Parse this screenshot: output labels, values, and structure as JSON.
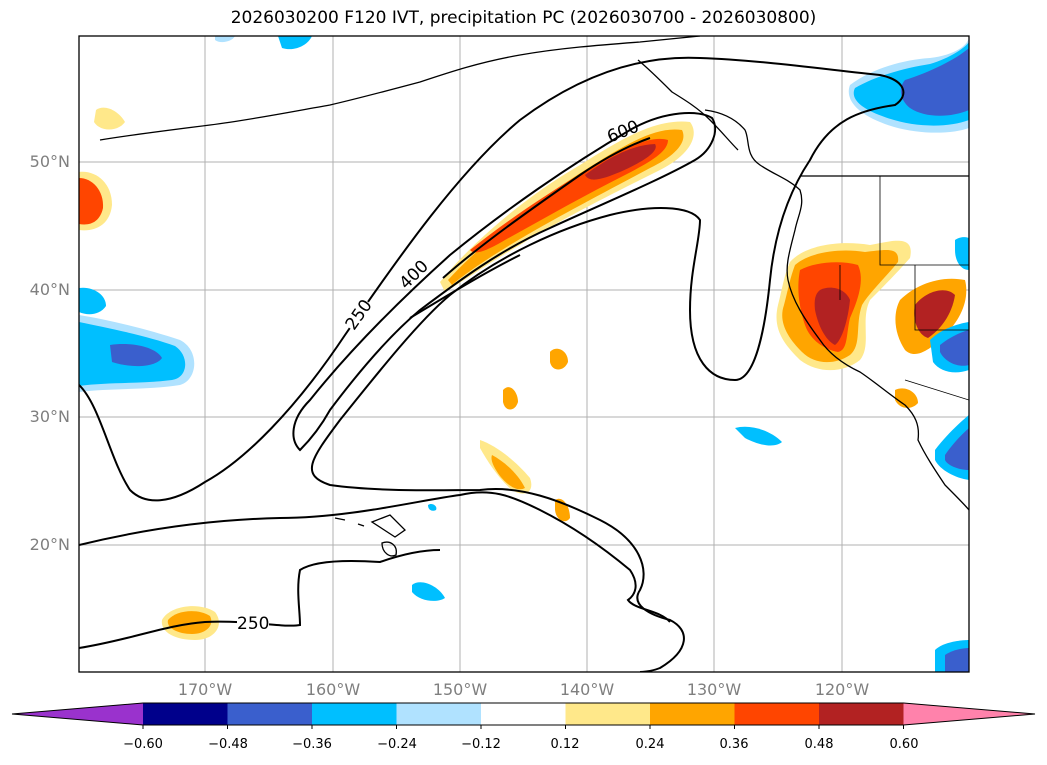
{
  "title": "2026030200 F120 IVT, precipitation PC (2026030700 - 2026030800)",
  "lat_labels": [
    "50°N",
    "40°N",
    "30°N",
    "20°N"
  ],
  "lon_labels": [
    "170°W",
    "160°W",
    "150°W",
    "140°W",
    "130°W",
    "120°W"
  ],
  "contour_labels": [
    "250",
    "400",
    "600",
    "250"
  ],
  "colorbar": {
    "ticks": [
      "−0.60",
      "−0.48",
      "−0.36",
      "−0.24",
      "−0.12",
      "0.12",
      "0.24",
      "0.36",
      "0.48",
      "0.60"
    ],
    "colors": [
      "#9a32cd",
      "#00008b",
      "#3a5fcd",
      "#00bfff",
      "#b0e2ff",
      "#ffffff",
      "#ffe88a",
      "#ffa500",
      "#ff4500",
      "#b22222",
      "#ff82ab"
    ]
  },
  "colors": {
    "pos_light": "#ffe88a",
    "pos_mid": "#ffa500",
    "pos_strong": "#ff4500",
    "pos_max": "#b22222",
    "neg_light": "#b0e2ff",
    "neg_mid": "#00bfff",
    "neg_strong": "#3a5fcd"
  }
}
